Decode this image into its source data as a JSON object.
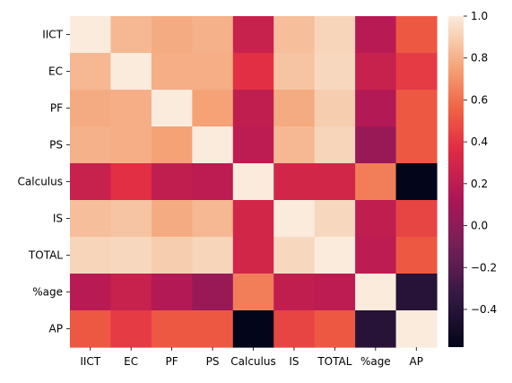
{
  "chart_data": {
    "type": "heatmap",
    "title": "",
    "xlabel": "",
    "ylabel": "",
    "rows": [
      "IICT",
      "EC",
      "PF",
      "PS",
      "Calculus",
      "IS",
      "TOTAL",
      "%age",
      "AP"
    ],
    "columns": [
      "IICT",
      "EC",
      "PF",
      "PS",
      "Calculus",
      "IS",
      "TOTAL",
      "%age",
      "AP"
    ],
    "values": [
      [
        1.0,
        0.82,
        0.78,
        0.8,
        0.25,
        0.84,
        0.92,
        0.18,
        0.52
      ],
      [
        0.82,
        1.0,
        0.79,
        0.79,
        0.38,
        0.86,
        0.93,
        0.25,
        0.42
      ],
      [
        0.78,
        0.79,
        1.0,
        0.75,
        0.22,
        0.78,
        0.89,
        0.16,
        0.52
      ],
      [
        0.8,
        0.79,
        0.75,
        1.0,
        0.2,
        0.82,
        0.92,
        0.05,
        0.52
      ],
      [
        0.25,
        0.38,
        0.22,
        0.2,
        1.0,
        0.3,
        0.3,
        0.64,
        -0.58
      ],
      [
        0.84,
        0.86,
        0.78,
        0.82,
        0.3,
        1.0,
        0.93,
        0.22,
        0.45
      ],
      [
        0.92,
        0.93,
        0.89,
        0.92,
        0.3,
        0.93,
        1.0,
        0.2,
        0.52
      ],
      [
        0.18,
        0.25,
        0.16,
        0.05,
        0.64,
        0.22,
        0.2,
        1.0,
        -0.4
      ],
      [
        0.52,
        0.42,
        0.52,
        0.52,
        -0.58,
        0.45,
        0.52,
        -0.4,
        1.0
      ]
    ],
    "colorbar": {
      "min": -0.58,
      "max": 1.0,
      "ticks": [
        1.0,
        0.8,
        0.6,
        0.4,
        0.2,
        0.0,
        -0.2,
        -0.4
      ],
      "tick_labels": [
        "1.0",
        "0.8",
        "0.6",
        "0.4",
        "0.2",
        "0.0",
        "−0.2",
        "−0.4"
      ]
    },
    "colormap": "rocket"
  }
}
